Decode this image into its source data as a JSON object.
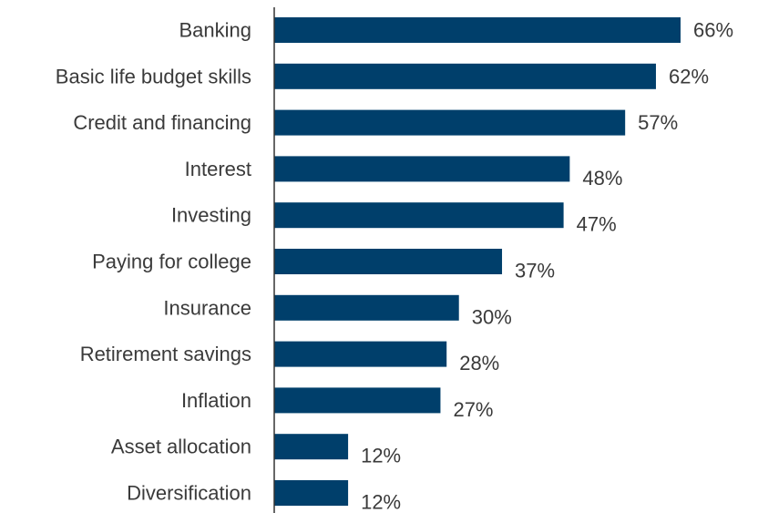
{
  "chart_data": {
    "type": "bar",
    "orientation": "horizontal",
    "categories": [
      "Banking",
      "Basic life budget skills",
      "Credit and financing",
      "Interest",
      "Investing",
      "Paying for college",
      "Insurance",
      "Retirement savings",
      "Inflation",
      "Asset allocation",
      "Diversification"
    ],
    "values": [
      66,
      62,
      57,
      48,
      47,
      37,
      30,
      28,
      27,
      12,
      12
    ],
    "value_labels": [
      "66%",
      "62%",
      "57%",
      "48%",
      "47%",
      "37%",
      "30%",
      "28%",
      "27%",
      "12%",
      "12%"
    ],
    "unit": "%",
    "title": "",
    "xlabel": "",
    "ylabel": "",
    "xlim": [
      0,
      66
    ],
    "grid": false,
    "legend": "none",
    "bar_color": "#003f6b",
    "text_color": "#3a3a3a",
    "axis_color": "#333333"
  }
}
